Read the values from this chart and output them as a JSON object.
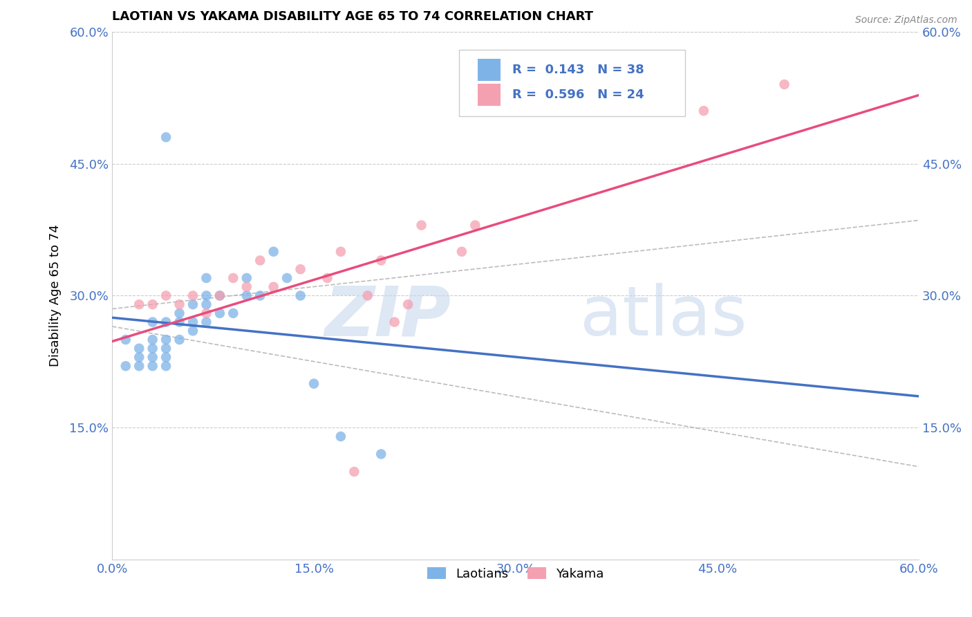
{
  "title": "LAOTIAN VS YAKAMA DISABILITY AGE 65 TO 74 CORRELATION CHART",
  "source_text": "Source: ZipAtlas.com",
  "ylabel": "Disability Age 65 to 74",
  "xlim": [
    0.0,
    0.6
  ],
  "ylim": [
    0.0,
    0.6
  ],
  "xtick_labels": [
    "0.0%",
    "15.0%",
    "30.0%",
    "45.0%",
    "60.0%"
  ],
  "xtick_vals": [
    0.0,
    0.15,
    0.3,
    0.45,
    0.6
  ],
  "ytick_labels": [
    "15.0%",
    "30.0%",
    "45.0%",
    "60.0%"
  ],
  "ytick_vals": [
    0.15,
    0.3,
    0.45,
    0.6
  ],
  "laotian_color": "#7eb3e8",
  "yakama_color": "#f4a0b0",
  "laotian_line_color": "#4472C4",
  "yakama_line_color": "#E84C7D",
  "r_laotian": 0.143,
  "n_laotian": 38,
  "r_yakama": 0.596,
  "n_yakama": 24,
  "legend_label_1": "Laotians",
  "legend_label_2": "Yakama",
  "laotian_x": [
    0.01,
    0.01,
    0.02,
    0.02,
    0.02,
    0.03,
    0.03,
    0.03,
    0.03,
    0.03,
    0.04,
    0.04,
    0.04,
    0.04,
    0.04,
    0.05,
    0.05,
    0.05,
    0.06,
    0.06,
    0.06,
    0.07,
    0.07,
    0.07,
    0.07,
    0.08,
    0.08,
    0.09,
    0.1,
    0.1,
    0.11,
    0.12,
    0.13,
    0.14,
    0.15,
    0.17,
    0.2,
    0.04
  ],
  "laotian_y": [
    0.22,
    0.25,
    0.22,
    0.23,
    0.24,
    0.22,
    0.23,
    0.24,
    0.25,
    0.27,
    0.22,
    0.23,
    0.24,
    0.25,
    0.27,
    0.25,
    0.27,
    0.28,
    0.26,
    0.27,
    0.29,
    0.27,
    0.29,
    0.3,
    0.32,
    0.28,
    0.3,
    0.28,
    0.3,
    0.32,
    0.3,
    0.35,
    0.32,
    0.3,
    0.2,
    0.14,
    0.12,
    0.48
  ],
  "yakama_x": [
    0.02,
    0.03,
    0.04,
    0.05,
    0.06,
    0.07,
    0.08,
    0.09,
    0.1,
    0.11,
    0.12,
    0.14,
    0.16,
    0.17,
    0.18,
    0.19,
    0.2,
    0.21,
    0.22,
    0.23,
    0.26,
    0.27,
    0.44,
    0.5
  ],
  "yakama_y": [
    0.29,
    0.29,
    0.3,
    0.29,
    0.3,
    0.28,
    0.3,
    0.32,
    0.31,
    0.34,
    0.31,
    0.33,
    0.32,
    0.35,
    0.1,
    0.3,
    0.34,
    0.27,
    0.29,
    0.38,
    0.35,
    0.38,
    0.51,
    0.54
  ]
}
